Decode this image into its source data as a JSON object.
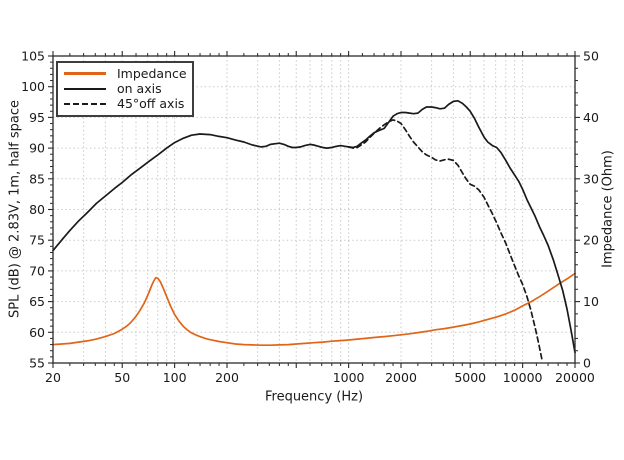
{
  "chart_data": {
    "type": "line",
    "title": "",
    "x_axis": {
      "label": "Frequency (Hz)",
      "scale": "log",
      "min": 20,
      "max": 20000,
      "major_ticks": [
        {
          "v": 20,
          "label": "20"
        },
        {
          "v": 50,
          "label": "50"
        },
        {
          "v": 100,
          "label": "100"
        },
        {
          "v": 200,
          "label": "200"
        },
        {
          "v": 500,
          "label": ""
        },
        {
          "v": 1000,
          "label": "1000"
        },
        {
          "v": 2000,
          "label": "2000"
        },
        {
          "v": 5000,
          "label": "5000"
        },
        {
          "v": 10000,
          "label": "10000"
        },
        {
          "v": 20000,
          "label": "20000"
        }
      ],
      "minor_ticks": [
        25,
        30,
        35,
        40,
        45,
        60,
        70,
        80,
        90,
        120,
        140,
        160,
        180,
        250,
        300,
        350,
        400,
        450,
        600,
        700,
        800,
        900,
        1200,
        1400,
        1600,
        1800,
        2500,
        3000,
        3500,
        4000,
        4500,
        6000,
        7000,
        8000,
        9000,
        12000,
        14000,
        16000,
        18000
      ],
      "gridlines": [
        30,
        40,
        50,
        60,
        70,
        80,
        90,
        100,
        200,
        300,
        400,
        500,
        600,
        700,
        800,
        900,
        1000,
        2000,
        3000,
        4000,
        5000,
        6000,
        7000,
        8000,
        9000,
        10000
      ]
    },
    "y_left": {
      "label": "SPL (dB) @ 2.83V, 1m, half space",
      "min": 55,
      "max": 105,
      "major_step": 5,
      "minor_step": 1
    },
    "y_right": {
      "label": "Impedance (Ohm)",
      "min": 0,
      "max": 50,
      "major_step": 10,
      "minor_step": 2
    },
    "grid": {
      "on": true,
      "color": "#c9c9c9",
      "style": "dotted"
    },
    "frame_color": "#2a2a2a",
    "legend": {
      "position": "top-left",
      "items": [
        {
          "label": "Impedance",
          "color": "#e06518",
          "dash": "solid"
        },
        {
          "label": "on axis",
          "color": "#1a1a1a",
          "dash": "solid"
        },
        {
          "label": "45°off axis",
          "color": "#1a1a1a",
          "dash": "dashed"
        }
      ]
    },
    "series": [
      {
        "name": "Impedance",
        "axis": "right",
        "color": "#e06518",
        "dash": "solid",
        "unit": "Ohm",
        "points": [
          [
            20,
            3.0
          ],
          [
            22.4,
            3.1
          ],
          [
            25,
            3.2
          ],
          [
            28,
            3.4
          ],
          [
            31.5,
            3.6
          ],
          [
            35.5,
            3.9
          ],
          [
            40,
            4.3
          ],
          [
            45,
            4.8
          ],
          [
            50,
            5.5
          ],
          [
            53,
            6.0
          ],
          [
            56,
            6.6
          ],
          [
            60,
            7.6
          ],
          [
            63,
            8.5
          ],
          [
            67,
            9.8
          ],
          [
            71,
            11.4
          ],
          [
            74,
            12.7
          ],
          [
            76,
            13.4
          ],
          [
            78,
            13.9
          ],
          [
            80,
            13.8
          ],
          [
            83,
            13.2
          ],
          [
            86,
            12.2
          ],
          [
            90,
            10.8
          ],
          [
            95,
            9.2
          ],
          [
            100,
            7.9
          ],
          [
            106,
            6.8
          ],
          [
            112,
            6.0
          ],
          [
            118,
            5.4
          ],
          [
            125,
            4.9
          ],
          [
            132,
            4.6
          ],
          [
            140,
            4.3
          ],
          [
            150,
            4.0
          ],
          [
            160,
            3.8
          ],
          [
            180,
            3.5
          ],
          [
            200,
            3.3
          ],
          [
            224,
            3.1
          ],
          [
            250,
            3.0
          ],
          [
            280,
            2.95
          ],
          [
            315,
            2.9
          ],
          [
            355,
            2.9
          ],
          [
            400,
            2.95
          ],
          [
            450,
            3.0
          ],
          [
            500,
            3.1
          ],
          [
            560,
            3.2
          ],
          [
            630,
            3.3
          ],
          [
            710,
            3.4
          ],
          [
            800,
            3.55
          ],
          [
            900,
            3.65
          ],
          [
            1000,
            3.75
          ],
          [
            1120,
            3.9
          ],
          [
            1250,
            4.0
          ],
          [
            1400,
            4.15
          ],
          [
            1600,
            4.3
          ],
          [
            1800,
            4.45
          ],
          [
            2000,
            4.6
          ],
          [
            2240,
            4.75
          ],
          [
            2500,
            4.95
          ],
          [
            2800,
            5.15
          ],
          [
            3150,
            5.4
          ],
          [
            3550,
            5.6
          ],
          [
            4000,
            5.85
          ],
          [
            4500,
            6.1
          ],
          [
            5000,
            6.35
          ],
          [
            5600,
            6.7
          ],
          [
            6300,
            7.1
          ],
          [
            7100,
            7.5
          ],
          [
            8000,
            8.0
          ],
          [
            9000,
            8.6
          ],
          [
            10000,
            9.3
          ],
          [
            11200,
            10.0
          ],
          [
            12500,
            10.8
          ],
          [
            14000,
            11.7
          ],
          [
            16000,
            12.8
          ],
          [
            18000,
            13.7
          ],
          [
            20000,
            14.6
          ]
        ]
      },
      {
        "name": "on axis",
        "axis": "left",
        "color": "#1a1a1a",
        "dash": "solid",
        "unit": "dB",
        "points": [
          [
            20,
            73.3
          ],
          [
            22.4,
            75.0
          ],
          [
            25,
            76.6
          ],
          [
            28,
            78.1
          ],
          [
            31.5,
            79.5
          ],
          [
            35.5,
            81.0
          ],
          [
            40,
            82.2
          ],
          [
            45,
            83.4
          ],
          [
            50,
            84.4
          ],
          [
            56,
            85.6
          ],
          [
            63,
            86.7
          ],
          [
            71,
            87.8
          ],
          [
            80,
            88.9
          ],
          [
            90,
            90.0
          ],
          [
            100,
            90.9
          ],
          [
            112,
            91.6
          ],
          [
            125,
            92.1
          ],
          [
            140,
            92.3
          ],
          [
            160,
            92.2
          ],
          [
            180,
            91.9
          ],
          [
            200,
            91.7
          ],
          [
            224,
            91.3
          ],
          [
            250,
            91.0
          ],
          [
            280,
            90.5
          ],
          [
            315,
            90.2
          ],
          [
            335,
            90.3
          ],
          [
            355,
            90.6
          ],
          [
            375,
            90.7
          ],
          [
            400,
            90.8
          ],
          [
            425,
            90.6
          ],
          [
            450,
            90.3
          ],
          [
            475,
            90.1
          ],
          [
            500,
            90.1
          ],
          [
            530,
            90.2
          ],
          [
            560,
            90.4
          ],
          [
            600,
            90.6
          ],
          [
            630,
            90.5
          ],
          [
            670,
            90.3
          ],
          [
            710,
            90.1
          ],
          [
            750,
            90.0
          ],
          [
            800,
            90.1
          ],
          [
            850,
            90.3
          ],
          [
            900,
            90.4
          ],
          [
            950,
            90.3
          ],
          [
            1000,
            90.2
          ],
          [
            1060,
            90.1
          ],
          [
            1120,
            90.3
          ],
          [
            1180,
            90.8
          ],
          [
            1250,
            91.3
          ],
          [
            1320,
            91.9
          ],
          [
            1400,
            92.5
          ],
          [
            1500,
            92.9
          ],
          [
            1600,
            93.2
          ],
          [
            1700,
            94.2
          ],
          [
            1800,
            95.2
          ],
          [
            1900,
            95.6
          ],
          [
            2000,
            95.8
          ],
          [
            2120,
            95.8
          ],
          [
            2240,
            95.7
          ],
          [
            2360,
            95.6
          ],
          [
            2500,
            95.7
          ],
          [
            2650,
            96.3
          ],
          [
            2800,
            96.7
          ],
          [
            3000,
            96.7
          ],
          [
            3150,
            96.6
          ],
          [
            3350,
            96.4
          ],
          [
            3550,
            96.5
          ],
          [
            3750,
            97.1
          ],
          [
            4000,
            97.6
          ],
          [
            4250,
            97.7
          ],
          [
            4500,
            97.3
          ],
          [
            4750,
            96.7
          ],
          [
            5000,
            96.0
          ],
          [
            5300,
            94.8
          ],
          [
            5600,
            93.4
          ],
          [
            6000,
            91.8
          ],
          [
            6300,
            91.0
          ],
          [
            6700,
            90.4
          ],
          [
            7100,
            90.1
          ],
          [
            7500,
            89.3
          ],
          [
            8000,
            88.0
          ],
          [
            8500,
            86.7
          ],
          [
            9000,
            85.6
          ],
          [
            9500,
            84.6
          ],
          [
            10000,
            83.3
          ],
          [
            10600,
            81.6
          ],
          [
            11200,
            80.2
          ],
          [
            11800,
            78.9
          ],
          [
            12500,
            77.2
          ],
          [
            13200,
            75.8
          ],
          [
            14000,
            74.2
          ],
          [
            15000,
            71.8
          ],
          [
            16000,
            69.3
          ],
          [
            17000,
            66.8
          ],
          [
            18000,
            63.8
          ],
          [
            19000,
            60.3
          ],
          [
            20000,
            56.7
          ]
        ]
      },
      {
        "name": "45°off axis",
        "axis": "left",
        "color": "#1a1a1a",
        "dash": "dashed",
        "unit": "dB",
        "points": [
          [
            1000,
            90.2
          ],
          [
            1060,
            90.0
          ],
          [
            1120,
            90.1
          ],
          [
            1180,
            90.5
          ],
          [
            1250,
            91.0
          ],
          [
            1320,
            91.7
          ],
          [
            1400,
            92.4
          ],
          [
            1500,
            93.2
          ],
          [
            1600,
            93.8
          ],
          [
            1700,
            94.3
          ],
          [
            1800,
            94.6
          ],
          [
            1900,
            94.4
          ],
          [
            2000,
            94.0
          ],
          [
            2120,
            93.0
          ],
          [
            2240,
            91.9
          ],
          [
            2360,
            91.0
          ],
          [
            2500,
            90.2
          ],
          [
            2650,
            89.4
          ],
          [
            2800,
            88.9
          ],
          [
            3000,
            88.5
          ],
          [
            3150,
            88.1
          ],
          [
            3350,
            87.9
          ],
          [
            3550,
            88.1
          ],
          [
            3750,
            88.2
          ],
          [
            4000,
            88.0
          ],
          [
            4250,
            87.2
          ],
          [
            4500,
            86.0
          ],
          [
            4750,
            84.9
          ],
          [
            5000,
            84.1
          ],
          [
            5300,
            83.8
          ],
          [
            5600,
            83.2
          ],
          [
            6000,
            82.0
          ],
          [
            6300,
            80.8
          ],
          [
            6700,
            79.3
          ],
          [
            7100,
            77.8
          ],
          [
            7500,
            76.2
          ],
          [
            8000,
            74.5
          ],
          [
            8500,
            72.6
          ],
          [
            9000,
            70.8
          ],
          [
            9500,
            69.2
          ],
          [
            10000,
            67.8
          ],
          [
            10600,
            65.8
          ],
          [
            11200,
            63.4
          ],
          [
            11800,
            60.8
          ],
          [
            12400,
            58.0
          ],
          [
            13000,
            55.2
          ]
        ]
      }
    ]
  }
}
